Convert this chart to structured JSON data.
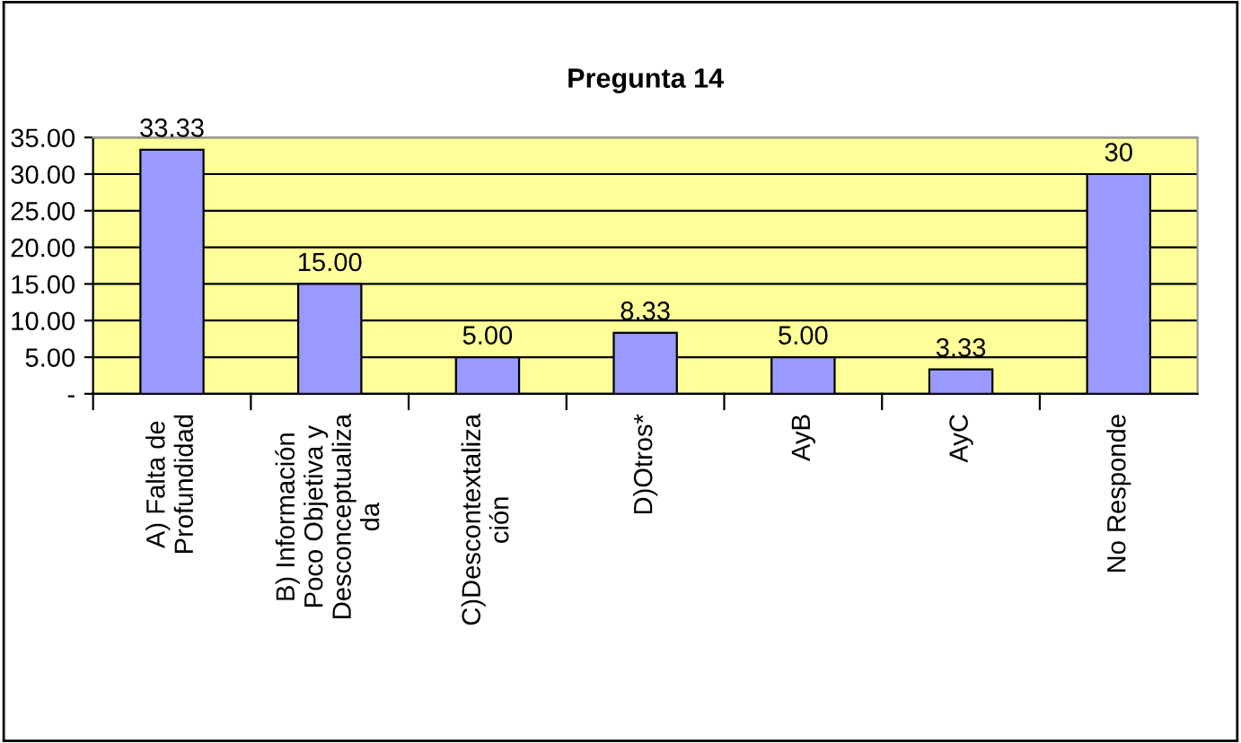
{
  "chart_data": {
    "type": "bar",
    "title": "Pregunta 14",
    "categories": [
      "A) Falta de\nProfundidad",
      "B) Información\nPoco Objetiva y\nDesconceptualiza\nda",
      "C)Descontextaliza\nción",
      "D)Otros*",
      "AyB",
      "AyC",
      "No Responde"
    ],
    "values": [
      33.33,
      15.0,
      5.0,
      8.33,
      5.0,
      3.33,
      30
    ],
    "value_labels": [
      "33.33",
      "15.00",
      "5.00",
      "8.33",
      "5.00",
      "3.33",
      "30"
    ],
    "color": "#9999ff",
    "ylim": [
      0,
      35
    ],
    "yticks": [
      {
        "value": 0,
        "label": "-"
      },
      {
        "value": 5,
        "label": "5.00"
      },
      {
        "value": 10,
        "label": "10.00"
      },
      {
        "value": 15,
        "label": "15.00"
      },
      {
        "value": 20,
        "label": "20.00"
      },
      {
        "value": 25,
        "label": "25.00"
      },
      {
        "value": 30,
        "label": "30.00"
      },
      {
        "value": 35,
        "label": "35.00"
      }
    ],
    "grid": "y"
  }
}
